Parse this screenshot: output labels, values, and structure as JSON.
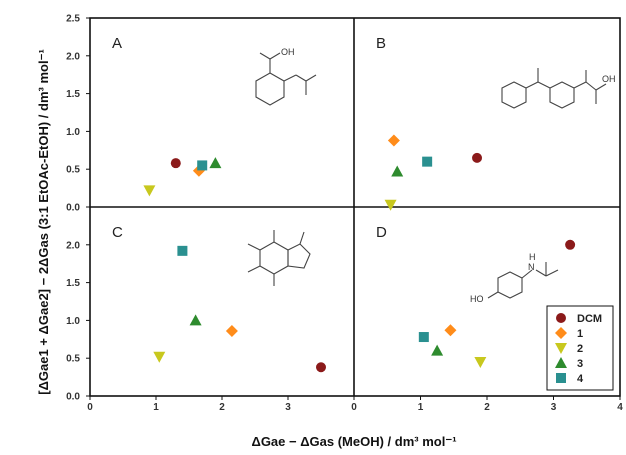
{
  "chart_data": {
    "type": "scatter",
    "xlabel": "ΔGae − ΔGas (MeOH) / dm³ mol⁻¹",
    "ylabel": "[ΔGae1 + ΔGae2] − 2ΔGas (3:1 EtOAc-EtOH) / dm³ mol⁻¹",
    "xlim": [
      0,
      4
    ],
    "ylim": [
      0,
      2.5
    ],
    "x_ticks": [
      "0",
      "1",
      "2",
      "3",
      "4"
    ],
    "y_ticks": [
      "0.0",
      "0.5",
      "1.0",
      "1.5",
      "2.0",
      "2.5"
    ],
    "legend_position": "bottom-right of panel D",
    "series": [
      {
        "name": "DCM",
        "marker": "circle",
        "color": "#8b1a1a"
      },
      {
        "name": "1",
        "marker": "diamond",
        "color": "#ff8c1a"
      },
      {
        "name": "2",
        "marker": "triangle-down",
        "color": "#c8c81e"
      },
      {
        "name": "3",
        "marker": "triangle-up",
        "color": "#2e8b2e"
      },
      {
        "name": "4",
        "marker": "square",
        "color": "#2a9090"
      }
    ],
    "panels": [
      {
        "label": "A",
        "points": [
          {
            "series": "DCM",
            "x": 1.3,
            "y": 0.58
          },
          {
            "series": "1",
            "x": 1.65,
            "y": 0.48
          },
          {
            "series": "2",
            "x": 0.9,
            "y": 0.22
          },
          {
            "series": "3",
            "x": 1.9,
            "y": 0.58
          },
          {
            "series": "4",
            "x": 1.7,
            "y": 0.55
          }
        ]
      },
      {
        "label": "B",
        "points": [
          {
            "series": "DCM",
            "x": 1.85,
            "y": 0.65
          },
          {
            "series": "1",
            "x": 0.6,
            "y": 0.88
          },
          {
            "series": "2",
            "x": 0.55,
            "y": 0.03
          },
          {
            "series": "3",
            "x": 0.65,
            "y": 0.47
          },
          {
            "series": "4",
            "x": 1.1,
            "y": 0.6
          }
        ]
      },
      {
        "label": "C",
        "points": [
          {
            "series": "DCM",
            "x": 3.5,
            "y": 0.38
          },
          {
            "series": "1",
            "x": 2.15,
            "y": 0.86
          },
          {
            "series": "2",
            "x": 1.05,
            "y": 0.52
          },
          {
            "series": "3",
            "x": 1.6,
            "y": 1.0
          },
          {
            "series": "4",
            "x": 1.4,
            "y": 1.92
          }
        ]
      },
      {
        "label": "D",
        "points": [
          {
            "series": "DCM",
            "x": 3.25,
            "y": 2.0
          },
          {
            "series": "1",
            "x": 1.45,
            "y": 0.87
          },
          {
            "series": "2",
            "x": 1.9,
            "y": 0.45
          },
          {
            "series": "3",
            "x": 1.25,
            "y": 0.6
          },
          {
            "series": "4",
            "x": 1.05,
            "y": 0.78
          }
        ]
      }
    ]
  },
  "atoms": {
    "a_oh": "OH",
    "b_oh": "OH",
    "d_ho": "HO",
    "d_nh": "N",
    "d_h": "H"
  }
}
